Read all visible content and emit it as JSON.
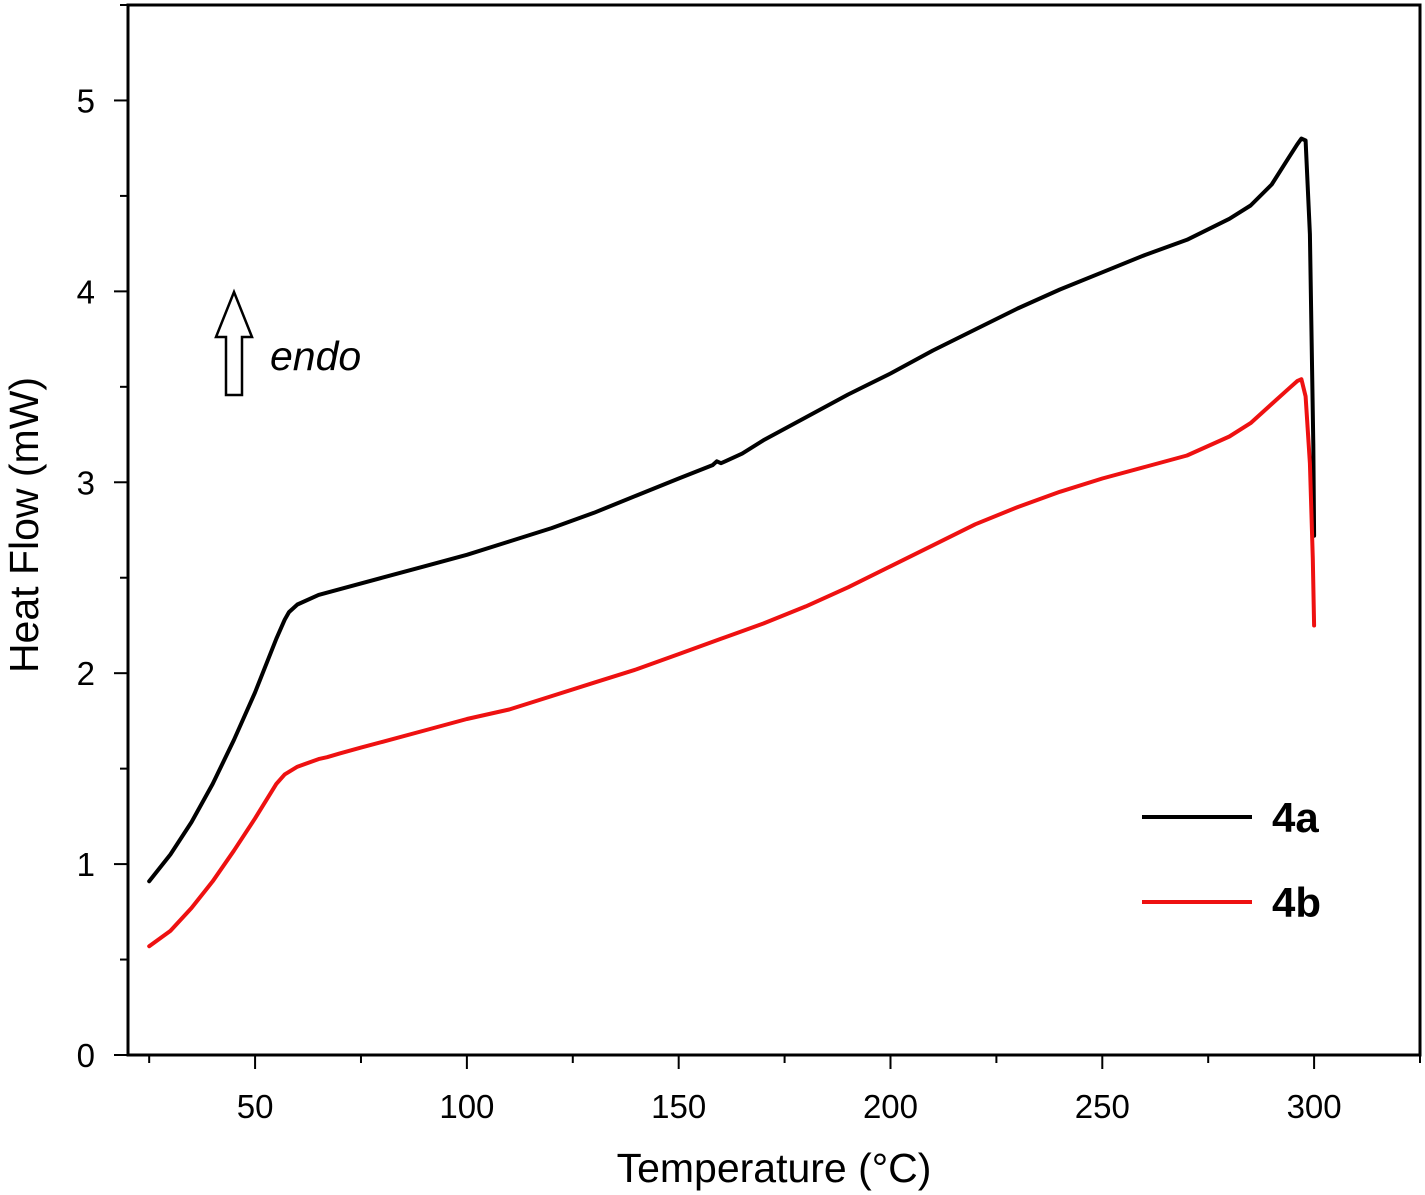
{
  "chart_data": {
    "type": "line",
    "title": "",
    "xlabel": "Temperature (°C)",
    "ylabel": "Heat Flow (mW)",
    "xlim": [
      20,
      325
    ],
    "ylim": [
      0,
      5.5
    ],
    "x_ticks": [
      50,
      100,
      150,
      200,
      250,
      300
    ],
    "y_ticks": [
      0,
      1,
      2,
      3,
      4,
      5
    ],
    "x_tick_labels": [
      "50",
      "100",
      "150",
      "200",
      "250",
      "300"
    ],
    "y_tick_labels": [
      "0",
      "1",
      "2",
      "3",
      "4",
      "5"
    ],
    "grid": false,
    "legend_position": "bottom-right",
    "annotation": {
      "text": "endo",
      "arrow": "up"
    },
    "series": [
      {
        "name": "4a",
        "color": "#000000",
        "points": [
          [
            25,
            0.91
          ],
          [
            30,
            1.05
          ],
          [
            35,
            1.22
          ],
          [
            40,
            1.42
          ],
          [
            45,
            1.65
          ],
          [
            50,
            1.9
          ],
          [
            55,
            2.18
          ],
          [
            57,
            2.28
          ],
          [
            58,
            2.32
          ],
          [
            60,
            2.36
          ],
          [
            65,
            2.41
          ],
          [
            70,
            2.44
          ],
          [
            80,
            2.5
          ],
          [
            90,
            2.56
          ],
          [
            100,
            2.62
          ],
          [
            110,
            2.69
          ],
          [
            120,
            2.76
          ],
          [
            130,
            2.84
          ],
          [
            140,
            2.93
          ],
          [
            150,
            3.02
          ],
          [
            158,
            3.09
          ],
          [
            159,
            3.11
          ],
          [
            160,
            3.1
          ],
          [
            161,
            3.11
          ],
          [
            165,
            3.15
          ],
          [
            170,
            3.22
          ],
          [
            180,
            3.34
          ],
          [
            190,
            3.46
          ],
          [
            200,
            3.57
          ],
          [
            210,
            3.69
          ],
          [
            220,
            3.8
          ],
          [
            230,
            3.91
          ],
          [
            240,
            4.01
          ],
          [
            250,
            4.1
          ],
          [
            260,
            4.19
          ],
          [
            270,
            4.27
          ],
          [
            280,
            4.38
          ],
          [
            285,
            4.45
          ],
          [
            290,
            4.56
          ],
          [
            294,
            4.7
          ],
          [
            296,
            4.77
          ],
          [
            297,
            4.8
          ],
          [
            298,
            4.79
          ],
          [
            299,
            4.3
          ],
          [
            299.8,
            3.2
          ],
          [
            300,
            2.72
          ]
        ]
      },
      {
        "name": "4b",
        "color": "#ee1111",
        "points": [
          [
            25,
            0.57
          ],
          [
            30,
            0.65
          ],
          [
            35,
            0.77
          ],
          [
            40,
            0.91
          ],
          [
            45,
            1.07
          ],
          [
            50,
            1.24
          ],
          [
            55,
            1.42
          ],
          [
            57,
            1.47
          ],
          [
            60,
            1.51
          ],
          [
            65,
            1.55
          ],
          [
            67,
            1.56
          ],
          [
            70,
            1.58
          ],
          [
            75,
            1.61
          ],
          [
            80,
            1.64
          ],
          [
            90,
            1.7
          ],
          [
            100,
            1.76
          ],
          [
            110,
            1.81
          ],
          [
            120,
            1.88
          ],
          [
            130,
            1.95
          ],
          [
            140,
            2.02
          ],
          [
            150,
            2.1
          ],
          [
            160,
            2.18
          ],
          [
            170,
            2.26
          ],
          [
            180,
            2.35
          ],
          [
            190,
            2.45
          ],
          [
            200,
            2.56
          ],
          [
            210,
            2.67
          ],
          [
            220,
            2.78
          ],
          [
            230,
            2.87
          ],
          [
            240,
            2.95
          ],
          [
            250,
            3.02
          ],
          [
            260,
            3.08
          ],
          [
            270,
            3.14
          ],
          [
            280,
            3.24
          ],
          [
            285,
            3.31
          ],
          [
            290,
            3.41
          ],
          [
            294,
            3.49
          ],
          [
            296,
            3.53
          ],
          [
            297,
            3.54
          ],
          [
            298,
            3.45
          ],
          [
            299,
            3.1
          ],
          [
            299.7,
            2.6
          ],
          [
            300,
            2.25
          ]
        ]
      }
    ]
  }
}
